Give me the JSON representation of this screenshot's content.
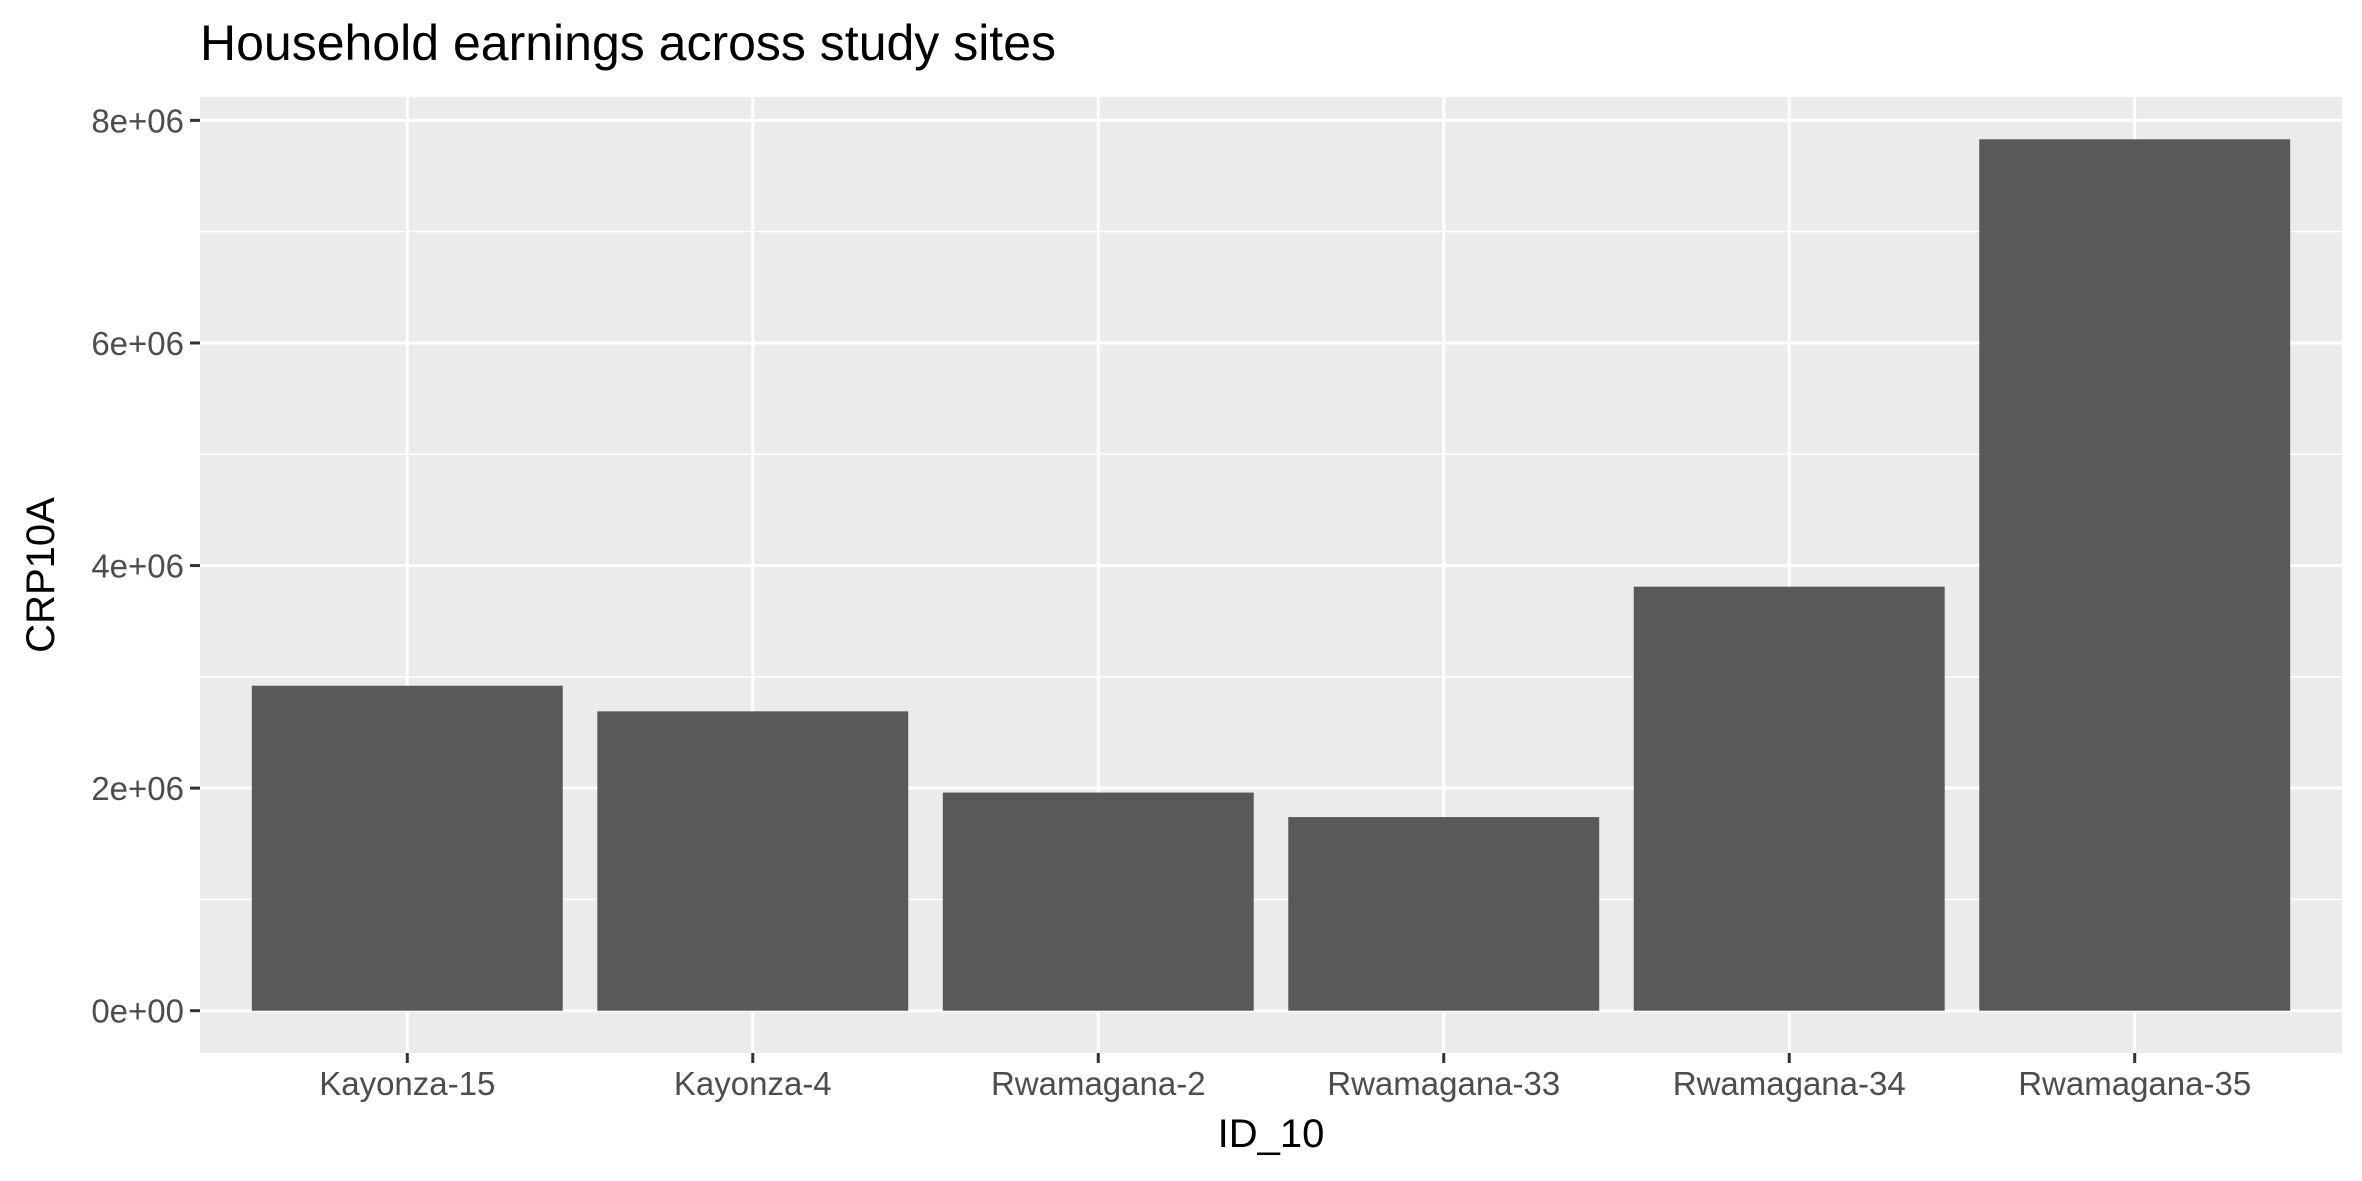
{
  "chart_data": {
    "type": "bar",
    "title": "Household earnings across study sites",
    "xlabel": "ID_10",
    "ylabel": "CRP10A",
    "categories": [
      "Kayonza-15",
      "Kayonza-4",
      "Rwamagana-2",
      "Rwamagana-33",
      "Rwamagana-34",
      "Rwamagana-35"
    ],
    "values": [
      2920000,
      2690000,
      1960000,
      1740000,
      3810000,
      7830000
    ],
    "ylim": [
      -380000,
      8210000
    ],
    "yticks": [
      0,
      2000000,
      4000000,
      6000000,
      8000000
    ],
    "ytick_labels": [
      "0e+00",
      "2e+06",
      "4e+06",
      "6e+06",
      "8e+06"
    ],
    "grid": true,
    "legend": "none",
    "colors": {
      "bar": "#595959",
      "panel": "#ebebeb",
      "grid": "#ffffff",
      "tick": "#333333"
    }
  }
}
